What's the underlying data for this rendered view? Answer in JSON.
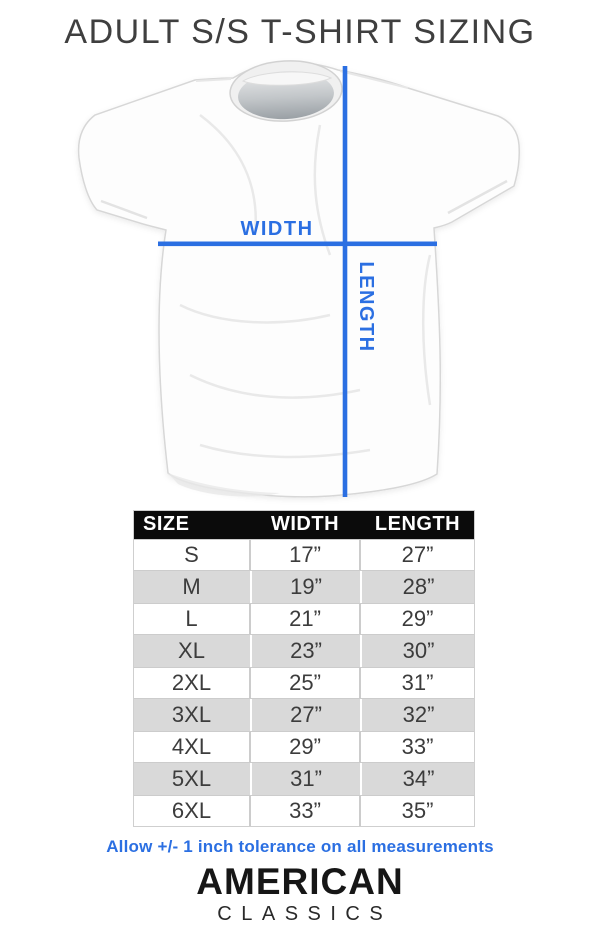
{
  "title": "ADULT S/S T-SHIRT SIZING",
  "diagram": {
    "width_label": "WIDTH",
    "length_label": "LENGTH"
  },
  "size_table": {
    "headers": [
      "SIZE",
      "WIDTH",
      "LENGTH"
    ],
    "rows": [
      {
        "size": "S",
        "width": "17”",
        "length": "27”"
      },
      {
        "size": "M",
        "width": "19”",
        "length": "28”"
      },
      {
        "size": "L",
        "width": "21”",
        "length": "29”"
      },
      {
        "size": "XL",
        "width": "23”",
        "length": "30”"
      },
      {
        "size": "2XL",
        "width": "25”",
        "length": "31”"
      },
      {
        "size": "3XL",
        "width": "27”",
        "length": "32”"
      },
      {
        "size": "4XL",
        "width": "29”",
        "length": "33”"
      },
      {
        "size": "5XL",
        "width": "31”",
        "length": "34”"
      },
      {
        "size": "6XL",
        "width": "33”",
        "length": "35”"
      }
    ]
  },
  "tolerance_note": "Allow +/- 1 inch tolerance on all measurements",
  "brand": {
    "name": "AMERICAN",
    "subtitle": "CLASSICS"
  },
  "colors": {
    "accent_blue": "#2b6fe2",
    "header_black": "#0b0b0b",
    "row_shade": "#d9d9d9"
  }
}
